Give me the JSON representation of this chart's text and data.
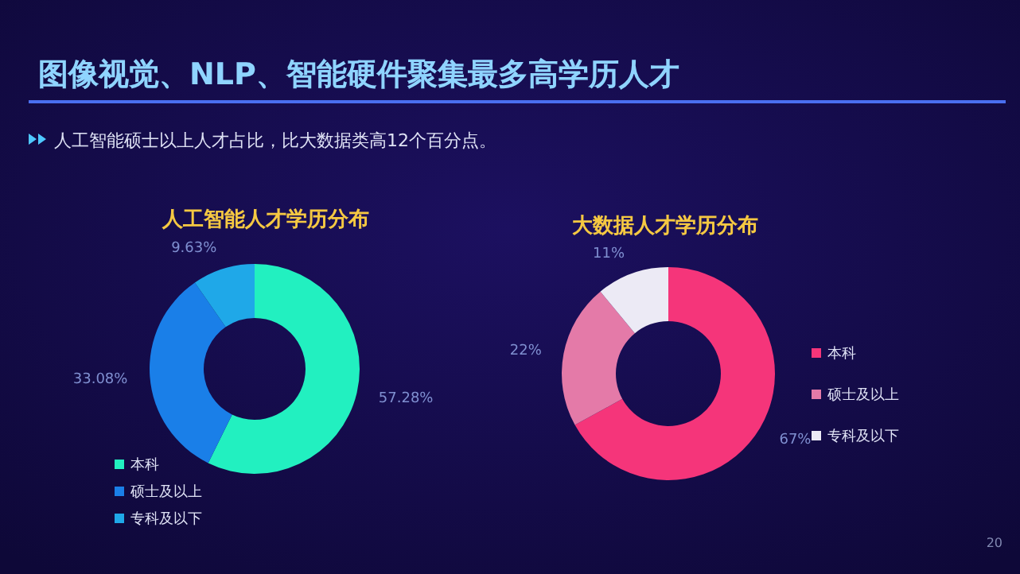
{
  "chart_data": [
    {
      "type": "other",
      "title": "图像视觉、NLP、智能硬件聚集最多高学历人才",
      "subtitle": "人工智能硕士以上人才占比，比大数据类高12个百分点。",
      "annotations": [
        "20"
      ]
    },
    {
      "type": "donut",
      "title": "人工智能人才学历分布",
      "categories": [
        "本科",
        "硕士及以上",
        "专科及以下"
      ],
      "values": [
        57.28,
        33.08,
        9.63
      ],
      "value_labels": [
        "57.28%",
        "33.08%",
        "9.63%"
      ],
      "colors": [
        "#22f0c0",
        "#1a7fe8",
        "#1fa8e8"
      ],
      "legend": "bottom left"
    },
    {
      "type": "donut",
      "title": "大数据人才学历分布",
      "categories": [
        "本科",
        "硕士及以上",
        "专科及以下"
      ],
      "values": [
        67,
        22,
        11
      ],
      "value_labels": [
        "67%",
        "22%",
        "11%"
      ],
      "colors": [
        "#f5357a",
        "#e47aa8",
        "#eceaf5"
      ],
      "legend": "right"
    }
  ]
}
